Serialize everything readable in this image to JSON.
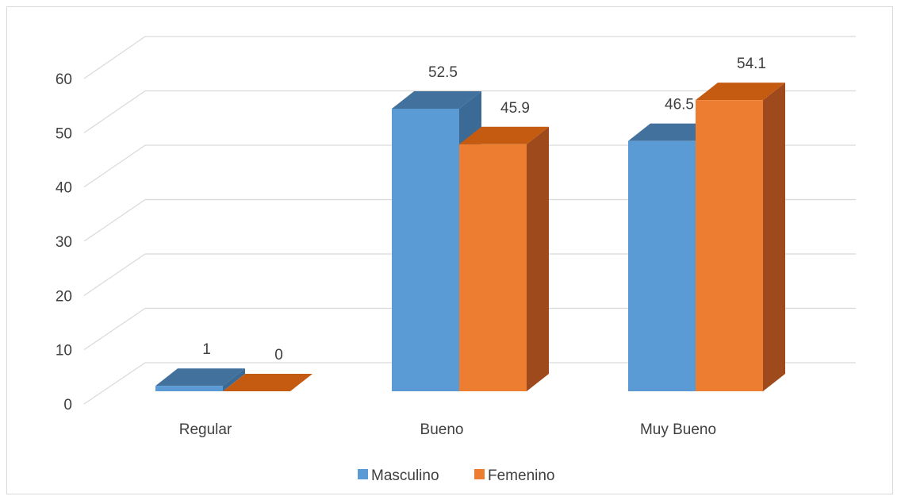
{
  "chart_data": {
    "type": "bar",
    "subtype": "3d-clustered-column",
    "categories": [
      "Regular",
      "Bueno",
      "Muy Bueno"
    ],
    "series": [
      {
        "name": "Masculino",
        "values": [
          1,
          52.5,
          46.5
        ],
        "labels": [
          "1",
          "52.5",
          "46.5"
        ]
      },
      {
        "name": "Femenino",
        "values": [
          0,
          45.9,
          54.1
        ],
        "labels": [
          "0",
          "45.9",
          "54.1"
        ]
      }
    ],
    "ylim": [
      0,
      60
    ],
    "yticks": [
      0,
      10,
      20,
      30,
      40,
      50,
      60
    ],
    "grid": true,
    "legend": "bottom-center"
  },
  "colors": {
    "masculino": {
      "front": "#5b9bd5",
      "top": "#41719c",
      "side": "#3a6a95"
    },
    "femenino": {
      "front": "#ed7d31",
      "top": "#c55a11",
      "side": "#9e4a1c"
    },
    "grid": "#d9d9d9"
  }
}
